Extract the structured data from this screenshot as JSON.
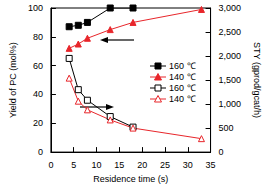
{
  "chart_data": {
    "type": "line",
    "x_label": "Residence time (s)",
    "y_label": "Yield of PC (mol%)",
    "y2_label": "STY (gprod/gcat/h)",
    "xlim": [
      0,
      35
    ],
    "xticks": [
      0,
      5,
      10,
      15,
      20,
      25,
      30,
      35
    ],
    "ylim": [
      0,
      100
    ],
    "yticks": [
      0,
      20,
      40,
      60,
      80,
      100
    ],
    "y2lim": [
      0,
      3000
    ],
    "y2ticks": [
      0,
      500,
      1000,
      1500,
      2000,
      2500,
      3000
    ],
    "grid": false,
    "legend": "right",
    "series": [
      {
        "name": "160 ℃",
        "color": "#000000",
        "marker": "square",
        "line_style": "solid",
        "x": [
          4,
          6,
          8,
          13,
          18
        ],
        "values": [
          87,
          88,
          90,
          100,
          100
        ]
      },
      {
        "name": "140 ℃",
        "color": "#e8262b",
        "marker": "triangle",
        "line_style": "solid",
        "x": [
          4,
          6,
          8,
          13,
          18,
          33
        ],
        "values": [
          72,
          75,
          79,
          85,
          90,
          99
        ]
      },
      {
        "name": "160 ℃",
        "color": "#000000",
        "marker": "square_open",
        "line_style": "solid",
        "axis": "y2",
        "x": [
          4,
          6,
          8,
          13,
          18
        ],
        "values": [
          1950,
          1300,
          1080,
          740,
          520
        ]
      },
      {
        "name": "140 ℃",
        "color": "#e8262b",
        "marker": "triangle_open",
        "line_style": "solid",
        "axis": "y2",
        "x": [
          4,
          6,
          8,
          13,
          18,
          33
        ],
        "values": [
          1540,
          1060,
          880,
          670,
          500,
          280
        ]
      }
    ]
  }
}
